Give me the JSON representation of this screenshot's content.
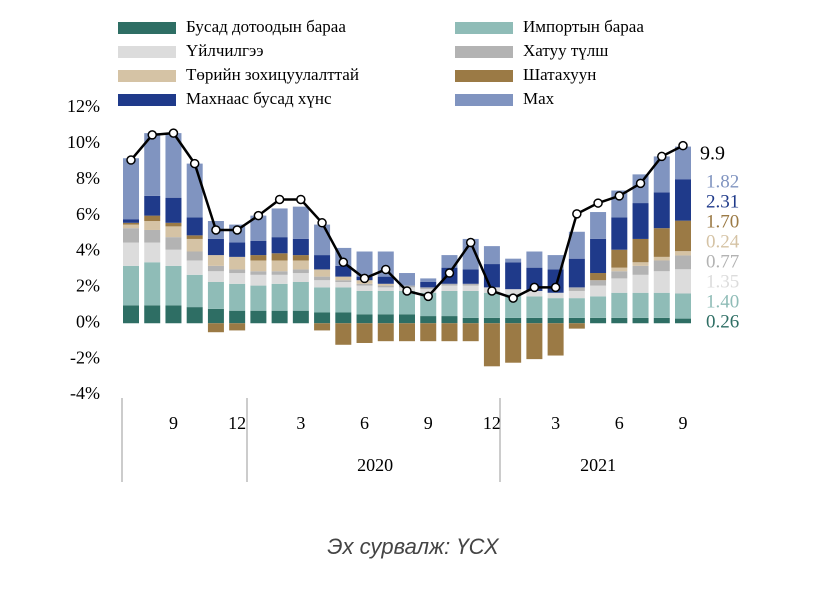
{
  "chart_data": {
    "type": "bar",
    "categories": [
      null,
      null,
      "9",
      null,
      null,
      "12",
      null,
      null,
      "3",
      null,
      null,
      "6",
      null,
      null,
      "9",
      null,
      null,
      "12",
      null,
      null,
      "3",
      null,
      null,
      "6",
      null,
      null,
      "9"
    ],
    "x_group_labels": [
      "2020",
      "2021"
    ],
    "ylim": [
      -4,
      12
    ],
    "yticks": [
      {
        "value": 12,
        "label": "12%"
      },
      {
        "value": 10,
        "label": "10%"
      },
      {
        "value": 8,
        "label": "8%"
      },
      {
        "value": 6,
        "label": "6%"
      },
      {
        "value": 4,
        "label": "4%"
      },
      {
        "value": 2,
        "label": "2%"
      },
      {
        "value": 0,
        "label": "0%"
      },
      {
        "value": -2,
        "label": "-2%"
      },
      {
        "value": -4,
        "label": "-4%"
      }
    ],
    "series": [
      {
        "name": "Бусад дотоодын бараа",
        "color": "#2e6e64",
        "values": [
          1.0,
          1.0,
          1.0,
          0.9,
          0.8,
          0.7,
          0.7,
          0.7,
          0.7,
          0.6,
          0.6,
          0.5,
          0.5,
          0.5,
          0.4,
          0.4,
          0.3,
          0.3,
          0.3,
          0.3,
          0.3,
          0.3,
          0.3,
          0.3,
          0.3,
          0.3,
          0.26
        ],
        "value_labels": [
          null,
          null,
          null,
          null,
          null,
          null,
          null,
          null,
          null,
          null,
          null,
          null,
          null,
          null,
          null,
          null,
          null,
          null,
          null,
          null,
          null,
          null,
          null,
          null,
          null,
          null,
          "0.26"
        ]
      },
      {
        "name": "Импортын бараа",
        "color": "#8fbcb7",
        "values": [
          2.2,
          2.4,
          2.2,
          1.8,
          1.5,
          1.5,
          1.4,
          1.5,
          1.6,
          1.4,
          1.4,
          1.3,
          1.3,
          1.3,
          1.3,
          1.4,
          1.5,
          1.4,
          1.3,
          1.2,
          1.1,
          1.1,
          1.2,
          1.4,
          1.4,
          1.4,
          1.4
        ],
        "value_labels": [
          null,
          null,
          null,
          null,
          null,
          null,
          null,
          null,
          null,
          null,
          null,
          null,
          null,
          null,
          null,
          null,
          null,
          null,
          null,
          null,
          null,
          null,
          null,
          null,
          null,
          null,
          "1.40"
        ]
      },
      {
        "name": "Үйлчилгээ",
        "color": "#dcdcdc",
        "values": [
          1.3,
          1.1,
          0.9,
          0.8,
          0.6,
          0.6,
          0.6,
          0.5,
          0.5,
          0.4,
          0.3,
          0.3,
          0.2,
          0.2,
          0.2,
          0.3,
          0.3,
          0.3,
          0.3,
          0.3,
          0.3,
          0.4,
          0.6,
          0.8,
          1.0,
          1.2,
          1.35
        ]
      },
      {
        "name": "Хатуу түлш",
        "color": "#b3b3b3",
        "values": [
          0.8,
          0.7,
          0.7,
          0.5,
          0.3,
          0.2,
          0.2,
          0.2,
          0.2,
          0.2,
          0.1,
          0.1,
          0.1,
          0.1,
          0.1,
          0.1,
          0.1,
          0.0,
          0.0,
          0.0,
          0.0,
          0.2,
          0.3,
          0.4,
          0.5,
          0.6,
          0.77
        ]
      },
      {
        "name": "Төрийн зохицуулалттай",
        "color": "#d5c3a5",
        "values": [
          0.2,
          0.5,
          0.6,
          0.7,
          0.6,
          0.7,
          0.6,
          0.6,
          0.5,
          0.4,
          0.2,
          0.2,
          0.1,
          0.0,
          0.0,
          0.0,
          0.0,
          0.0,
          0.0,
          0.0,
          0.0,
          0.0,
          0.0,
          0.2,
          0.2,
          0.2,
          0.24
        ]
      },
      {
        "name": "Шатахуун",
        "color": "#9b7a45",
        "values": [
          0.1,
          0.3,
          0.2,
          0.2,
          -0.5,
          -0.4,
          0.3,
          0.4,
          0.3,
          -0.4,
          -1.2,
          -1.1,
          -1.0,
          -1.0,
          -1.0,
          -1.0,
          -1.0,
          -2.4,
          -2.2,
          -2.0,
          -1.8,
          -0.3,
          0.4,
          1.0,
          1.3,
          1.6,
          1.7
        ],
        "value_labels": [
          null,
          null,
          null,
          null,
          null,
          null,
          null,
          null,
          null,
          null,
          null,
          null,
          null,
          null,
          null,
          null,
          null,
          null,
          null,
          null,
          null,
          null,
          null,
          null,
          null,
          null,
          "1.70"
        ]
      },
      {
        "name": "Махнаас  бусад хүнс",
        "color": "#1f3a8a",
        "values": [
          0.2,
          1.1,
          1.4,
          1.0,
          0.9,
          0.8,
          0.8,
          0.9,
          0.9,
          0.8,
          0.6,
          0.2,
          0.4,
          0.0,
          0.3,
          0.9,
          0.8,
          1.3,
          1.5,
          1.3,
          1.3,
          1.6,
          1.9,
          1.8,
          2.0,
          2.0,
          2.31
        ]
      },
      {
        "name": "Мах",
        "color": "#8094c0",
        "values": [
          3.4,
          3.5,
          3.6,
          3.0,
          1.0,
          1.0,
          1.4,
          1.6,
          1.8,
          1.7,
          1.0,
          1.4,
          1.4,
          0.7,
          0.2,
          0.7,
          1.7,
          1.0,
          0.2,
          0.9,
          0.8,
          1.5,
          1.5,
          1.5,
          1.6,
          2.0,
          1.82
        ]
      }
    ],
    "line": {
      "values": [
        9.1,
        10.5,
        10.6,
        8.9,
        5.2,
        5.2,
        6.0,
        6.9,
        6.9,
        5.6,
        3.4,
        2.5,
        3.0,
        1.8,
        1.5,
        2.8,
        4.5,
        1.8,
        1.4,
        2.0,
        2.0,
        6.1,
        6.7,
        7.1,
        7.8,
        9.3,
        9.9
      ],
      "color": "#000000"
    },
    "source": "Эх сурвалж: ҮСХ"
  }
}
